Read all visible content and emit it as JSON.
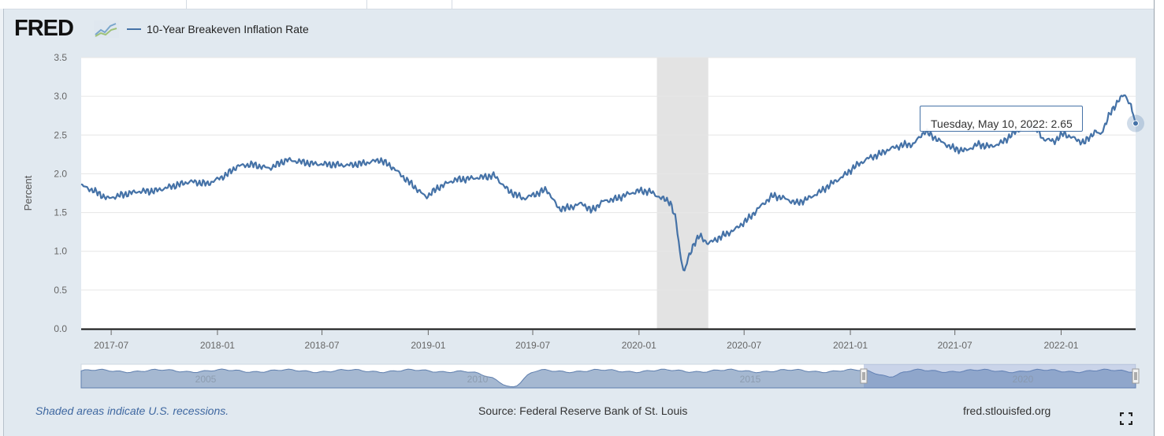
{
  "brand": {
    "name": "FRED",
    "icon": "fred-line-chart-icon"
  },
  "colors": {
    "series": "#4572a7",
    "recession": "#e3e3e3",
    "navigator": "#8fa6c6"
  },
  "legend": {
    "label": "10-Year Breakeven Inflation Rate"
  },
  "tooltip": {
    "date": "Tuesday, May 10, 2022:",
    "value": "2.65"
  },
  "footer": {
    "recession_note": "Shaded areas indicate U.S. recessions.",
    "source": "Source: Federal Reserve Bank of St. Louis",
    "site": "fred.stlouisfed.org",
    "fullscreen_icon": "fullscreen-icon"
  },
  "navigator": {
    "year_labels": [
      "2005",
      "2010",
      "2015",
      "2020"
    ]
  },
  "chart_data": {
    "type": "line",
    "title": "10-Year Breakeven Inflation Rate",
    "xlabel": "",
    "ylabel": "Percent",
    "ylim": [
      0.0,
      3.5
    ],
    "yticks": [
      "0.0",
      "0.5",
      "1.0",
      "1.5",
      "2.0",
      "2.5",
      "3.0",
      "3.5"
    ],
    "xlim": [
      "2017-05-10",
      "2022-05-10"
    ],
    "xticks": [
      {
        "date": "2017-07-01",
        "label": "2017-07"
      },
      {
        "date": "2018-01-01",
        "label": "2018-01"
      },
      {
        "date": "2018-07-01",
        "label": "2018-07"
      },
      {
        "date": "2019-01-01",
        "label": "2019-01"
      },
      {
        "date": "2019-07-01",
        "label": "2019-07"
      },
      {
        "date": "2020-01-01",
        "label": "2020-01"
      },
      {
        "date": "2020-07-01",
        "label": "2020-07"
      },
      {
        "date": "2021-01-01",
        "label": "2021-01"
      },
      {
        "date": "2021-07-01",
        "label": "2021-07"
      },
      {
        "date": "2022-01-01",
        "label": "2022-01"
      }
    ],
    "recessions": [
      {
        "start": "2020-02-01",
        "end": "2020-04-30"
      }
    ],
    "series": [
      {
        "name": "10-Year Breakeven Inflation Rate",
        "x": [
          "2017-05-10",
          "2017-06-01",
          "2017-06-25",
          "2017-07-15",
          "2017-08-15",
          "2017-09-15",
          "2017-10-15",
          "2017-11-15",
          "2017-12-15",
          "2018-01-15",
          "2018-02-05",
          "2018-03-01",
          "2018-04-01",
          "2018-05-01",
          "2018-05-20",
          "2018-06-15",
          "2018-07-15",
          "2018-08-15",
          "2018-09-15",
          "2018-10-10",
          "2018-11-01",
          "2018-11-20",
          "2018-12-10",
          "2018-12-28",
          "2019-01-20",
          "2019-02-15",
          "2019-03-15",
          "2019-04-10",
          "2019-04-25",
          "2019-05-20",
          "2019-06-15",
          "2019-07-10",
          "2019-07-25",
          "2019-08-15",
          "2019-09-01",
          "2019-09-25",
          "2019-10-10",
          "2019-11-01",
          "2019-11-20",
          "2019-12-10",
          "2019-12-31",
          "2020-01-20",
          "2020-02-10",
          "2020-02-24",
          "2020-03-05",
          "2020-03-12",
          "2020-03-19",
          "2020-03-26",
          "2020-04-05",
          "2020-04-15",
          "2020-04-30",
          "2020-05-20",
          "2020-06-15",
          "2020-07-10",
          "2020-08-01",
          "2020-08-20",
          "2020-09-10",
          "2020-09-30",
          "2020-10-20",
          "2020-11-10",
          "2020-12-01",
          "2020-12-20",
          "2021-01-10",
          "2021-02-01",
          "2021-02-20",
          "2021-03-10",
          "2021-04-01",
          "2021-04-20",
          "2021-05-10",
          "2021-05-20",
          "2021-06-10",
          "2021-07-01",
          "2021-07-20",
          "2021-08-10",
          "2021-09-01",
          "2021-09-20",
          "2021-10-10",
          "2021-10-28",
          "2021-11-15",
          "2021-12-01",
          "2021-12-20",
          "2022-01-05",
          "2022-01-25",
          "2022-02-10",
          "2022-03-01",
          "2022-03-10",
          "2022-03-25",
          "2022-04-10",
          "2022-04-21",
          "2022-05-01",
          "2022-05-10"
        ],
        "values": [
          1.85,
          1.78,
          1.68,
          1.72,
          1.77,
          1.78,
          1.84,
          1.9,
          1.87,
          1.98,
          2.1,
          2.12,
          2.07,
          2.18,
          2.16,
          2.13,
          2.12,
          2.11,
          2.14,
          2.18,
          2.08,
          1.95,
          1.82,
          1.7,
          1.83,
          1.92,
          1.94,
          1.96,
          1.98,
          1.78,
          1.68,
          1.75,
          1.8,
          1.55,
          1.56,
          1.62,
          1.52,
          1.65,
          1.67,
          1.73,
          1.78,
          1.77,
          1.68,
          1.64,
          1.4,
          0.98,
          0.72,
          0.9,
          1.1,
          1.2,
          1.1,
          1.18,
          1.28,
          1.43,
          1.6,
          1.72,
          1.68,
          1.62,
          1.68,
          1.77,
          1.88,
          1.97,
          2.1,
          2.2,
          2.25,
          2.32,
          2.37,
          2.38,
          2.55,
          2.5,
          2.4,
          2.32,
          2.3,
          2.38,
          2.35,
          2.4,
          2.52,
          2.6,
          2.62,
          2.45,
          2.42,
          2.52,
          2.45,
          2.4,
          2.55,
          2.5,
          2.75,
          2.95,
          3.02,
          2.9,
          2.65
        ]
      }
    ]
  }
}
